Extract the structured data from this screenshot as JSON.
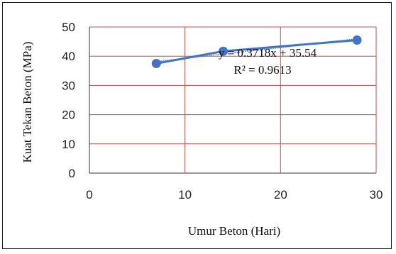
{
  "chart_data": {
    "type": "scatter",
    "xlabel": "Umur Beton (Hari)",
    "ylabel": "Kuat Tekan Beton (MPa)",
    "xlim": [
      0,
      30
    ],
    "ylim": [
      0,
      50
    ],
    "x_ticks": [
      0,
      10,
      20,
      30
    ],
    "y_ticks": [
      0,
      10,
      20,
      30,
      40,
      50
    ],
    "grid": true,
    "series": [
      {
        "x": [
          7,
          14,
          28
        ],
        "y": [
          37.5,
          41.7,
          45.5
        ],
        "color": "#4472c4"
      }
    ],
    "trendline": {
      "type": "linear",
      "slope": 0.3718,
      "intercept": 35.54,
      "equation": "y = 0.3718x + 35.54",
      "r_squared": "R² = 0.9613",
      "color": "#4472c4"
    },
    "grid_color": "#c0504d"
  }
}
